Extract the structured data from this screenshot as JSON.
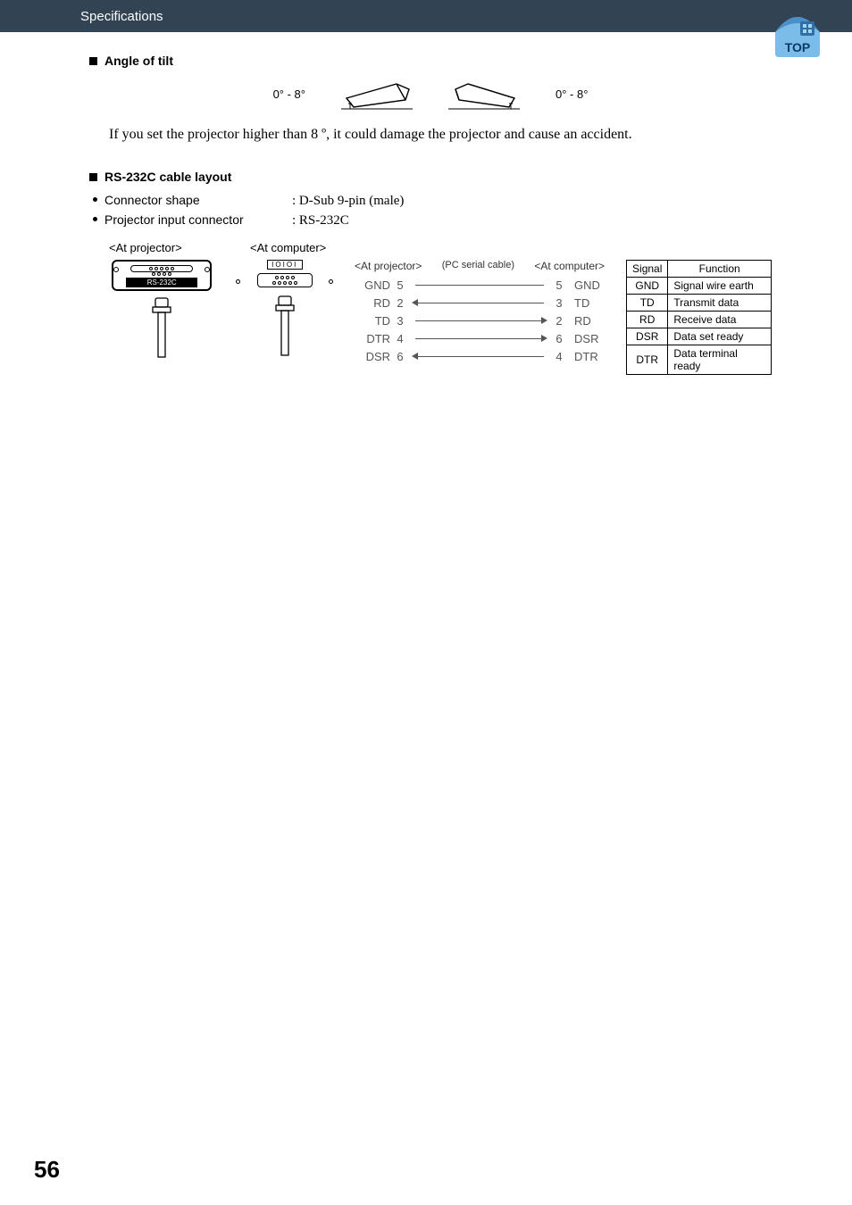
{
  "header": {
    "title": "Specifications"
  },
  "logo": {
    "bg": "#7bbde8",
    "top": "#4a8fc7",
    "text": "TOP",
    "text_color": "#0a3a6a"
  },
  "sections": {
    "tilt": {
      "heading": "Angle of tilt",
      "label_left": "0° - 8°",
      "label_right": "0° - 8°",
      "warning": "If you set the projector higher than 8 º, it could damage the projector and cause an accident."
    },
    "cable": {
      "heading": "RS-232C cable layout",
      "bullets": [
        {
          "label": "Connector shape",
          "value": ": D-Sub 9-pin (male)"
        },
        {
          "label": "Projector input connector",
          "value": ": RS-232C"
        }
      ],
      "col_heads": {
        "proj": "<At projector>",
        "comp": "<At computer>"
      },
      "rs_label": "RS-232C",
      "ioioi": "IOIOI",
      "pinmap": {
        "head_proj": "<At projector>",
        "head_mid": "(PC serial cable)",
        "head_comp": "<At computer>",
        "rows": [
          {
            "ls": "GND",
            "lp": "5",
            "rp": "5",
            "rs": "GND",
            "arrow": "none"
          },
          {
            "ls": "RD",
            "lp": "2",
            "rp": "3",
            "rs": "TD",
            "arrow": "left"
          },
          {
            "ls": "TD",
            "lp": "3",
            "rp": "2",
            "rs": "RD",
            "arrow": "right"
          },
          {
            "ls": "DTR",
            "lp": "4",
            "rp": "6",
            "rs": "DSR",
            "arrow": "right"
          },
          {
            "ls": "DSR",
            "lp": "6",
            "rp": "4",
            "rs": "DTR",
            "arrow": "left"
          }
        ]
      },
      "sig_table": {
        "head_signal": "Signal",
        "head_func": "Function",
        "rows": [
          {
            "s": "GND",
            "f": "Signal wire earth"
          },
          {
            "s": "TD",
            "f": "Transmit data"
          },
          {
            "s": "RD",
            "f": "Receive data"
          },
          {
            "s": "DSR",
            "f": "Data set ready"
          },
          {
            "s": "DTR",
            "f": "Data terminal ready"
          }
        ]
      }
    }
  },
  "page_number": "56"
}
